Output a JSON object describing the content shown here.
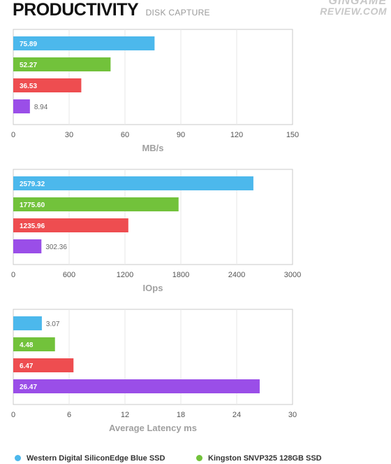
{
  "header": {
    "title": "PRODUCTIVITY",
    "subtitle": "DISK CAPTURE",
    "watermark_line1": "GINGAME",
    "watermark_line2": "REVIEW.COM"
  },
  "colors": [
    "#4cb8ec",
    "#72c23b",
    "#ee4d50",
    "#9a4ee8"
  ],
  "chart_data": [
    {
      "type": "bar",
      "orientation": "horizontal",
      "xlabel": "MB/s",
      "xlim": [
        0,
        150
      ],
      "ticks": [
        "0",
        "30",
        "60",
        "90",
        "120",
        "150"
      ],
      "grid": true,
      "values": [
        75.89,
        52.27,
        36.53,
        8.94
      ],
      "labels": [
        "75.89",
        "52.27",
        "36.53",
        "8.94"
      ]
    },
    {
      "type": "bar",
      "orientation": "horizontal",
      "xlabel": "IOps",
      "xlim": [
        0,
        3000
      ],
      "ticks": [
        "0",
        "600",
        "1200",
        "1800",
        "2400",
        "3000"
      ],
      "grid": true,
      "values": [
        2579.32,
        1775.6,
        1235.96,
        302.36
      ],
      "labels": [
        "2579.32",
        "1775.60",
        "1235.96",
        "302.36"
      ]
    },
    {
      "type": "bar",
      "orientation": "horizontal",
      "xlabel": "Average Latency ms",
      "xlim": [
        0,
        30
      ],
      "ticks": [
        "0",
        "6",
        "12",
        "18",
        "24",
        "30"
      ],
      "grid": true,
      "values": [
        3.07,
        4.48,
        6.47,
        26.47
      ],
      "labels": [
        "3.07",
        "4.48",
        "6.47",
        "26.47"
      ]
    }
  ],
  "legend": [
    {
      "name": "Western Digital SiliconEdge Blue SSD",
      "color": "#4cb8ec"
    },
    {
      "name": "Kingston SNVP325 128GB SSD",
      "color": "#72c23b"
    }
  ]
}
